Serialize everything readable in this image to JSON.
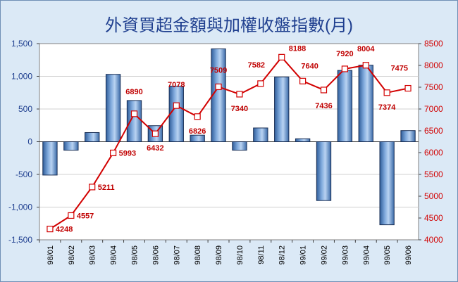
{
  "chart_data": {
    "type": "bar",
    "title": "外資買超金額與加權收盤指數(月)",
    "categories": [
      "98/01",
      "98/02",
      "98/03",
      "98/04",
      "98/05",
      "98/06",
      "98/07",
      "98/08",
      "98/09",
      "98/10",
      "98/11",
      "98/12",
      "99/01",
      "99/02",
      "99/03",
      "99/04",
      "99/05",
      "99/06"
    ],
    "series": [
      {
        "type": "bar",
        "axis": "left",
        "color": "#4f7fba",
        "values": [
          -510,
          -130,
          140,
          1030,
          630,
          245,
          850,
          100,
          1420,
          -130,
          210,
          990,
          45,
          -900,
          1090,
          1170,
          -1270,
          170
        ]
      },
      {
        "type": "line",
        "axis": "right",
        "color": "#d20000",
        "values": [
          4248,
          4557,
          5211,
          5993,
          6890,
          6432,
          7078,
          6826,
          7509,
          7340,
          7582,
          8188,
          7640,
          7436,
          7920,
          8004,
          7374,
          7475
        ],
        "labels": [
          "4248",
          "4557",
          "5211",
          "5993",
          "6890",
          "6432",
          "7078",
          "6826",
          "7509",
          "7340",
          "7582",
          "8188",
          "7640",
          "7436",
          "7920",
          "8004",
          "7374",
          "7475"
        ]
      }
    ],
    "y_left": {
      "min": -1500,
      "max": 1500,
      "step": 500,
      "tick_labels": [
        "-1,500",
        "-1,000",
        "-500",
        "0",
        "500",
        "1,000",
        "1,500"
      ]
    },
    "y_right": {
      "min": 4000,
      "max": 8500,
      "step": 500,
      "tick_labels": [
        "4000",
        "4500",
        "5000",
        "5500",
        "6000",
        "6500",
        "7000",
        "7500",
        "8000",
        "8500"
      ]
    },
    "grid": true,
    "colors": {
      "title": "#1f3f8f",
      "left_axis": "#1f3f8f",
      "right_axis": "#d20000",
      "plot_bg": "#ffffff",
      "chart_bg": "#dbe9f6"
    }
  }
}
